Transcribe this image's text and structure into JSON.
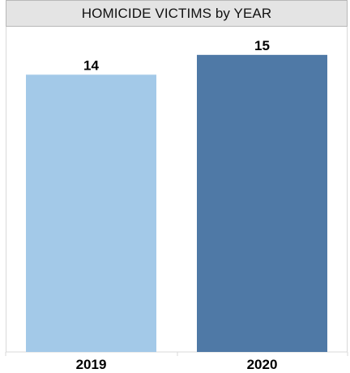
{
  "chart_data": {
    "type": "bar",
    "title": "HOMICIDE VICTIMS by YEAR",
    "categories": [
      "2019",
      "2020"
    ],
    "values": [
      14,
      15
    ],
    "data_labels": [
      "14",
      "15"
    ],
    "colors": [
      "#a3c9e8",
      "#4f79a6"
    ],
    "ylim": [
      0,
      16.3
    ],
    "grid": false,
    "legend": "none"
  }
}
